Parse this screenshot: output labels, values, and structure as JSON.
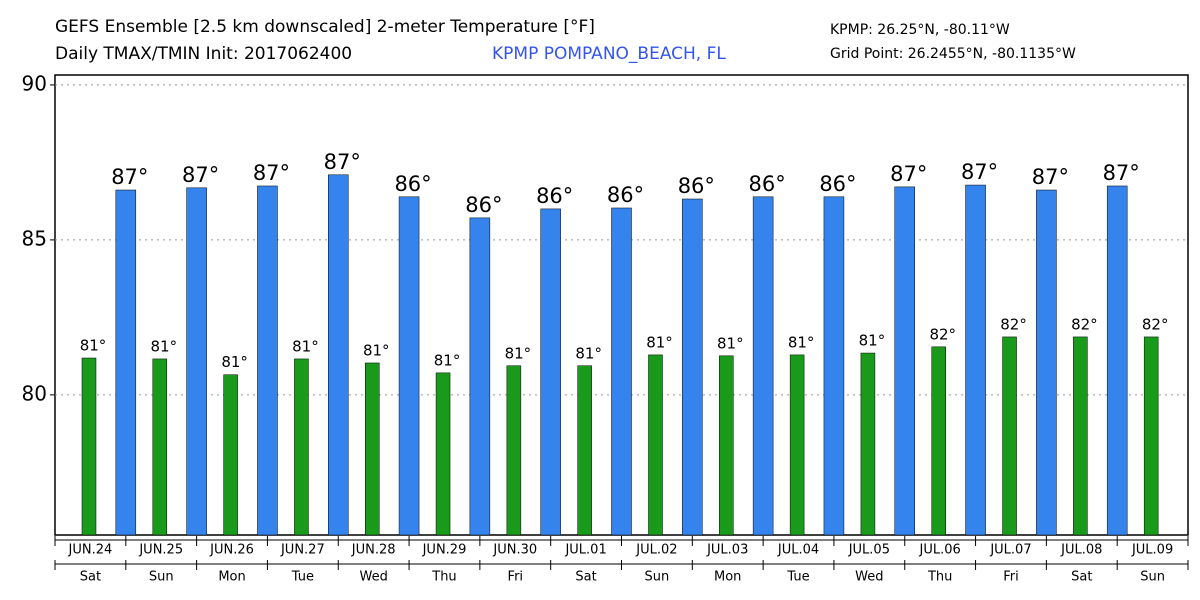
{
  "chart_data": {
    "type": "bar",
    "title": "GEFS Ensemble [2.5 km downscaled] 2-meter Temperature [°F]",
    "subtitle": "Daily TMAX/TMIN Init: 2017062400",
    "station": "KPMP POMPANO_BEACH, FL",
    "station_coords": "KPMP: 26.25°N, -80.11°W",
    "grid_point": "Grid Point: 26.2455°N, -80.1135°W",
    "categories": [
      "JUN.24",
      "JUN.25",
      "JUN.26",
      "JUN.27",
      "JUN.28",
      "JUN.29",
      "JUN.30",
      "JUL.01",
      "JUL.02",
      "JUL.03",
      "JUL.04",
      "JUL.05",
      "JUL.06",
      "JUL.07",
      "JUL.08",
      "JUL.09"
    ],
    "weekdays": [
      "Sat",
      "Sun",
      "Mon",
      "Tue",
      "Wed",
      "Thu",
      "Fri",
      "Sat",
      "Sun",
      "Mon",
      "Tue",
      "Wed",
      "Thu",
      "Fri",
      "Sat",
      "Sun"
    ],
    "series": [
      {
        "color": "#1a9a1a",
        "values": [
          81.19,
          81.16,
          80.65,
          81.16,
          81.03,
          80.71,
          80.94,
          80.94,
          81.29,
          81.26,
          81.29,
          81.35,
          81.55,
          81.87,
          81.87,
          81.87
        ],
        "value_labels": [
          "81°",
          "81°",
          "81°",
          "81°",
          "81°",
          "81°",
          "81°",
          "81°",
          "81°",
          "81°",
          "81°",
          "81°",
          "82°",
          "82°",
          "82°",
          "82°"
        ]
      },
      {
        "color": "#3584ee",
        "values": [
          86.61,
          86.68,
          86.74,
          87.1,
          86.39,
          85.71,
          86.0,
          86.03,
          86.32,
          86.39,
          86.39,
          86.71,
          86.77,
          86.61,
          86.74,
          null
        ],
        "value_labels": [
          "87°",
          "87°",
          "87°",
          "87°",
          "86°",
          "86°",
          "86°",
          "86°",
          "86°",
          "86°",
          "86°",
          "87°",
          "87°",
          "87°",
          "87°",
          null
        ]
      }
    ],
    "ylim": [
      75.48,
      90.32
    ],
    "yticks": [
      80,
      85,
      90
    ],
    "grid": true
  }
}
